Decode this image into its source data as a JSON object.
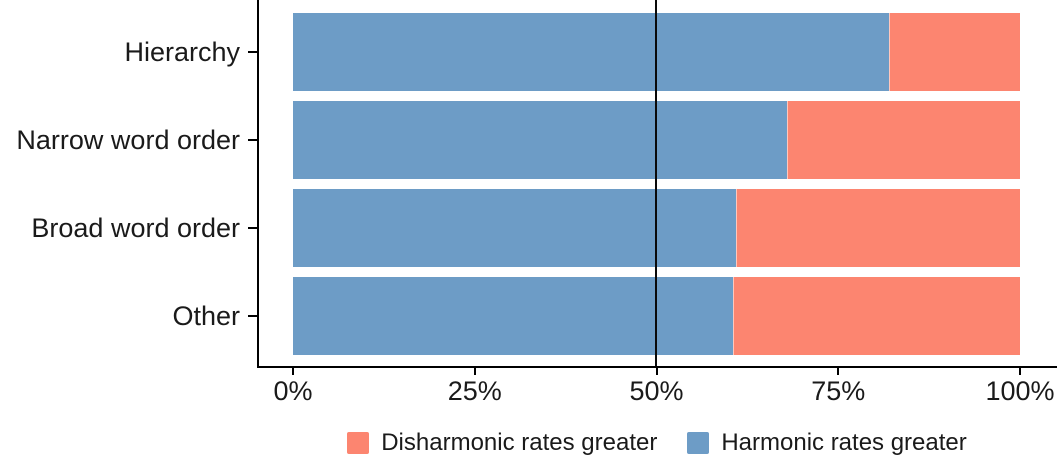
{
  "chart_data": {
    "type": "bar",
    "orientation": "horizontal",
    "stacked": true,
    "unit": "%",
    "title": "",
    "xlabel": "",
    "ylabel": "",
    "categories": [
      "Hierarchy",
      "Narrow word order",
      "Broad word order",
      "Other"
    ],
    "series": [
      {
        "name": "Harmonic rates greater",
        "color": "#6D9CC6",
        "values": [
          82,
          68,
          61,
          60.5
        ]
      },
      {
        "name": "Disharmonic rates greater",
        "color": "#FC8570",
        "values": [
          18,
          32,
          39,
          39.5
        ]
      }
    ],
    "x_range": [
      0,
      100
    ],
    "x_ticks": [
      {
        "value": 0,
        "label": "0%"
      },
      {
        "value": 25,
        "label": "25%"
      },
      {
        "value": 50,
        "label": "50%"
      },
      {
        "value": 75,
        "label": "75%"
      },
      {
        "value": 100,
        "label": "100%"
      }
    ],
    "reference_line_x": 50,
    "grid": false,
    "axis_color": "#000000",
    "text_color": "#1a1a1a",
    "legend": {
      "position": "bottom-center",
      "items": [
        {
          "label": "Disharmonic rates greater",
          "color": "#FC8570"
        },
        {
          "label": "Harmonic rates greater",
          "color": "#6D9CC6"
        }
      ]
    }
  }
}
